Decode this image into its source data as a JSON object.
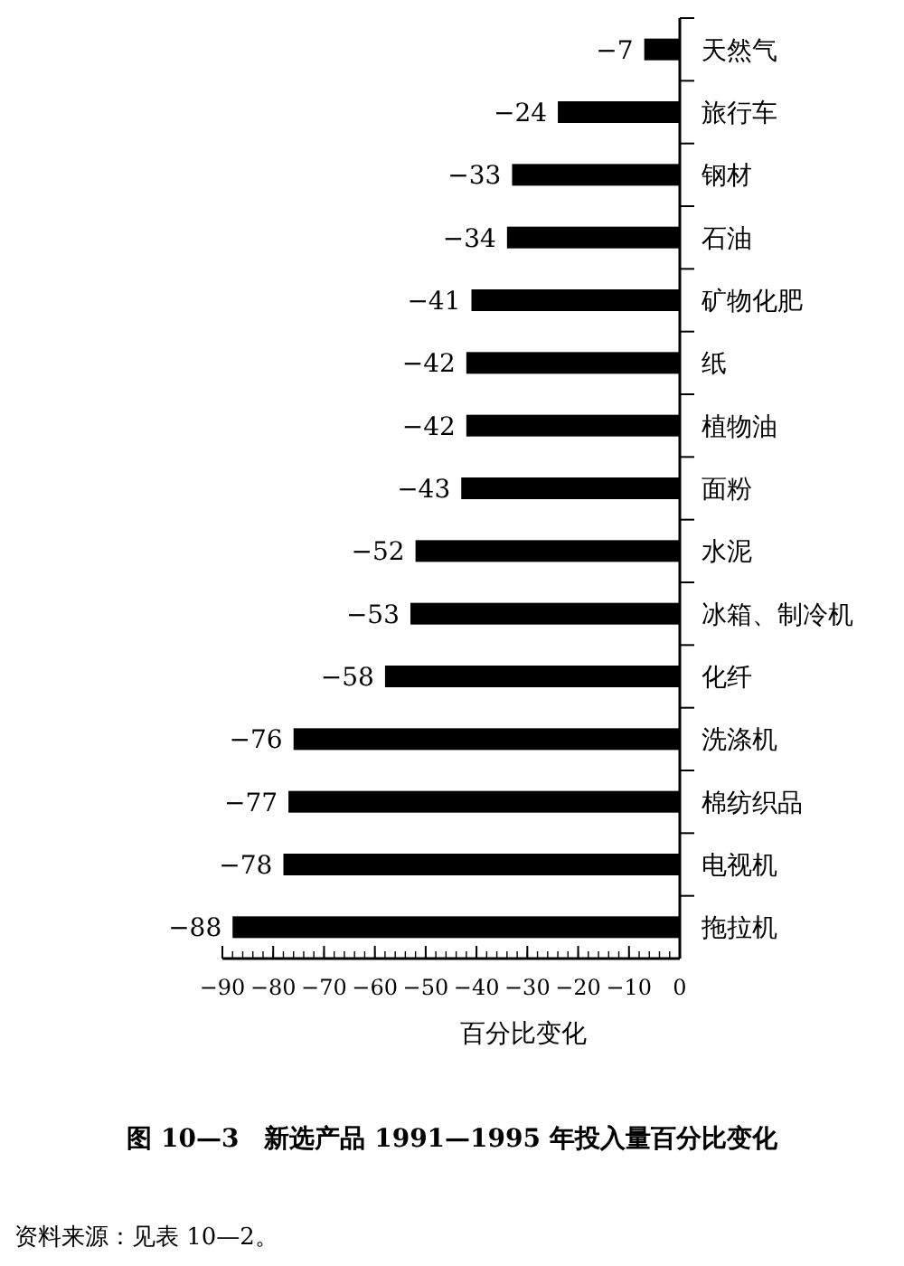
{
  "chart_data": {
    "type": "bar",
    "orientation": "horizontal",
    "title": "图 10—3　新选产品 1991—1995 年投入量百分比变化",
    "xlabel": "百分比变化",
    "categories": [
      "天然气",
      "旅行车",
      "钢材",
      "石油",
      "矿物化肥",
      "纸",
      "植物油",
      "面粉",
      "水泥",
      "冰箱、制冷机",
      "化纤",
      "洗涤机",
      "棉纺织品",
      "电视机",
      "拖拉机"
    ],
    "values": [
      -7,
      -24,
      -33,
      -34,
      -41,
      -42,
      -42,
      -43,
      -52,
      -53,
      -58,
      -76,
      -77,
      -78,
      -88
    ],
    "color": "#000000",
    "data_labels": true,
    "xlim": [
      -90,
      0
    ],
    "xticks": [
      -90,
      -80,
      -70,
      -60,
      -50,
      -40,
      -30,
      -20,
      -10,
      0
    ],
    "grid": false,
    "annotations": [
      "资料来源：见表 10—2。"
    ]
  }
}
